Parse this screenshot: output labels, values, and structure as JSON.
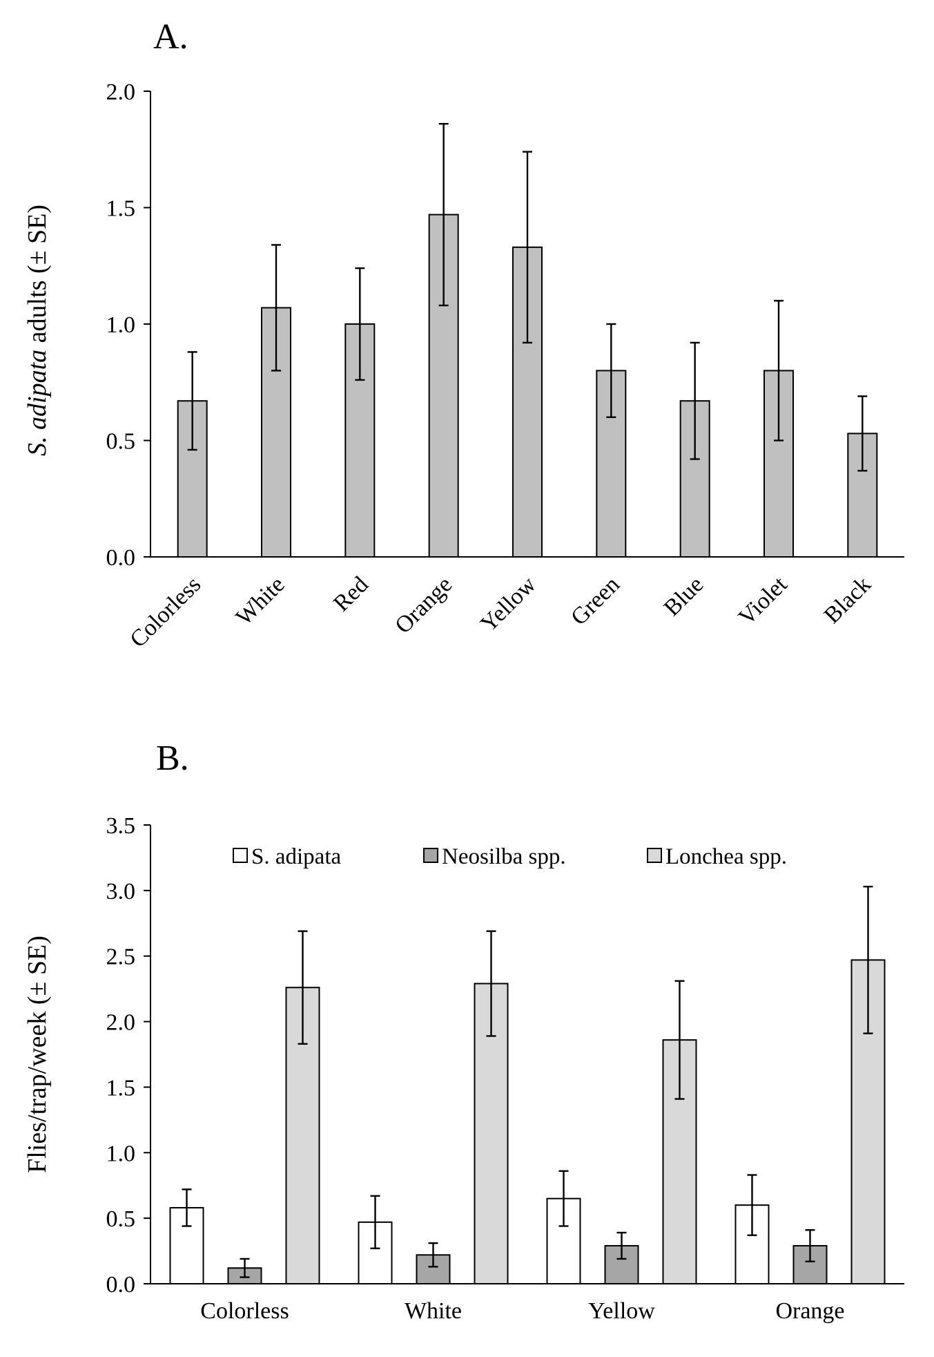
{
  "chart_data": [
    {
      "type": "bar",
      "panel_label": "A.",
      "ylabel_italic": "S. adipata",
      "ylabel_rest": " adults (± SE)",
      "xlabel": "",
      "ylim": [
        0,
        2.0
      ],
      "yticks": [
        0.0,
        0.5,
        1.0,
        1.5,
        2.0
      ],
      "ytick_labels": [
        "0.0",
        "0.5",
        "1.0",
        "1.5",
        "2.0"
      ],
      "categories": [
        "Colorless",
        "White",
        "Red",
        "Orange",
        "Yellow",
        "Green",
        "Blue",
        "Violet",
        "Black"
      ],
      "values": [
        0.67,
        1.07,
        1.0,
        1.47,
        1.33,
        0.8,
        0.67,
        0.8,
        0.53
      ],
      "errors": [
        0.21,
        0.27,
        0.24,
        0.39,
        0.41,
        0.2,
        0.25,
        0.3,
        0.16
      ],
      "bar_color": "#c0c0c0",
      "grid": false
    },
    {
      "type": "bar",
      "panel_label": "B.",
      "ylabel": "Flies/trap/week  (± SE)",
      "xlabel": "",
      "ylim": [
        0,
        3.5
      ],
      "yticks": [
        0.0,
        0.5,
        1.0,
        1.5,
        2.0,
        2.5,
        3.0,
        3.5
      ],
      "ytick_labels": [
        "0.0",
        "0.5",
        "1.0",
        "1.5",
        "2.0",
        "2.5",
        "3.0",
        "3.5"
      ],
      "categories": [
        "Colorless",
        "White",
        "Yellow",
        "Orange"
      ],
      "series": [
        {
          "name": "S. adipata",
          "color": "#ffffff",
          "values": [
            0.58,
            0.47,
            0.65,
            0.6
          ],
          "errors": [
            0.14,
            0.2,
            0.21,
            0.23
          ]
        },
        {
          "name": "Neosilba spp.",
          "color": "#a6a6a6",
          "values": [
            0.12,
            0.22,
            0.29,
            0.29
          ],
          "errors": [
            0.07,
            0.09,
            0.1,
            0.12
          ]
        },
        {
          "name": "Lonchea spp.",
          "color": "#d9d9d9",
          "values": [
            2.26,
            2.29,
            1.86,
            2.47
          ],
          "errors": [
            0.43,
            0.4,
            0.45,
            0.56
          ]
        }
      ],
      "legend_position": "top",
      "grid": false
    }
  ]
}
